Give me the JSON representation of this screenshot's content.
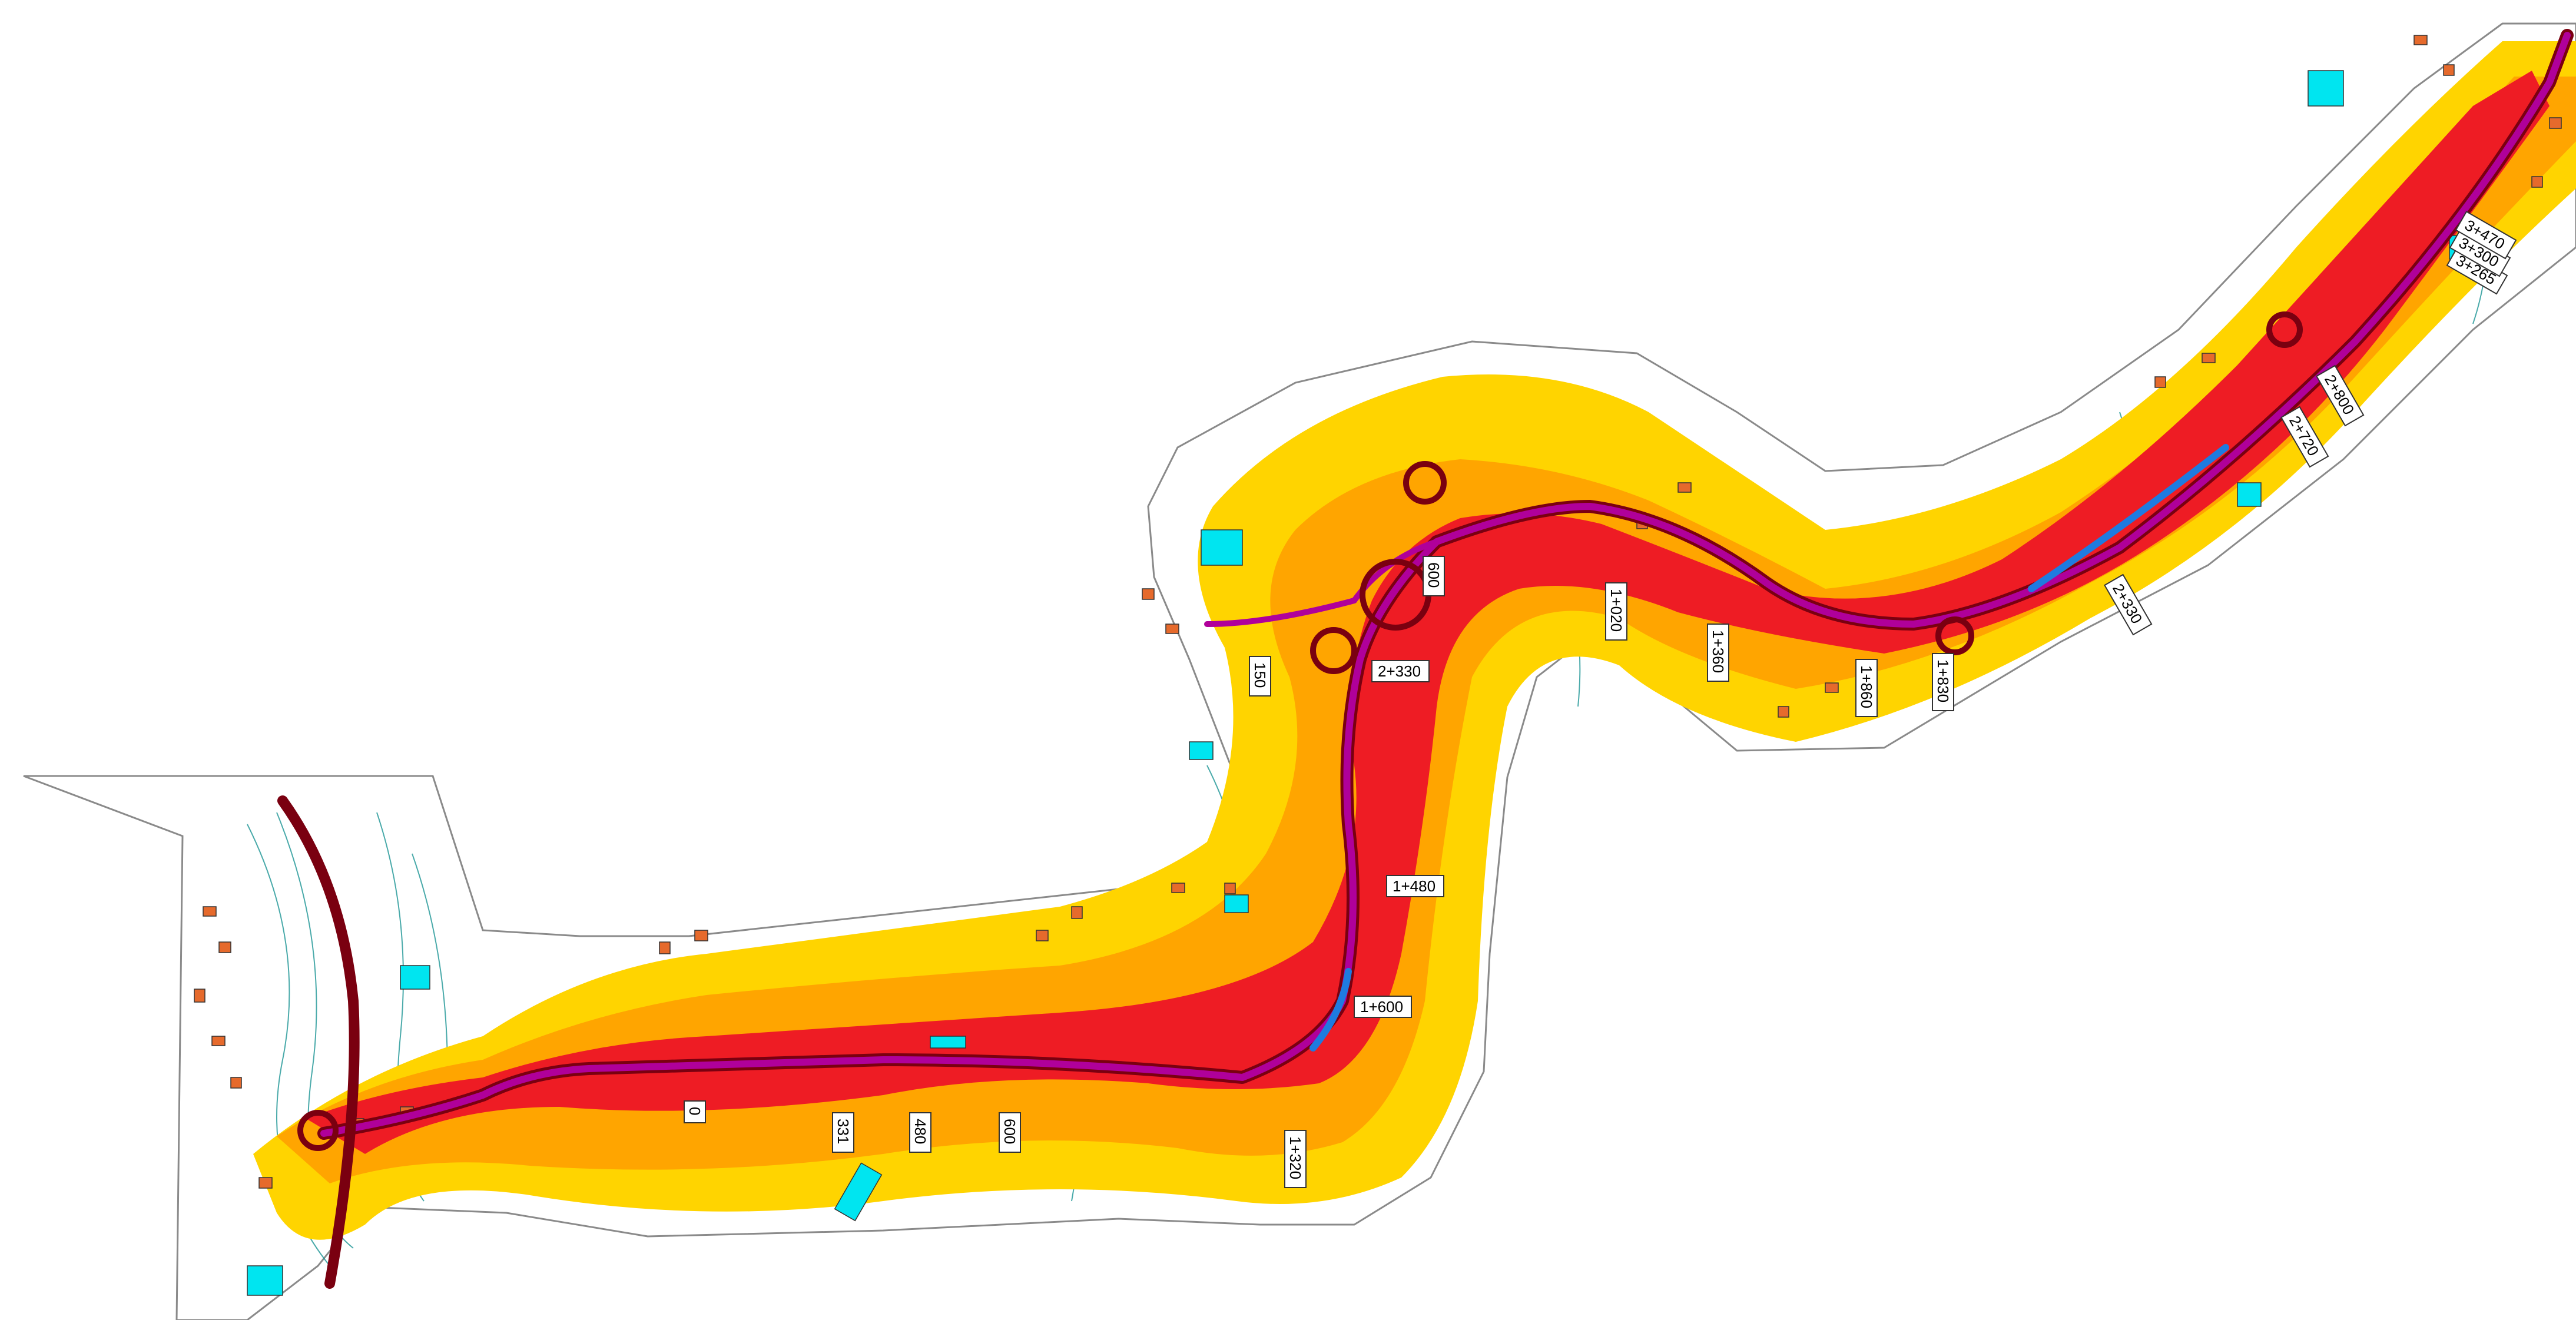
{
  "colors": {
    "zone_high": "#ee1c24",
    "zone_mid": "#ffa500",
    "zone_low": "#ffd400",
    "road_axis": "#b0009a",
    "road_edge": "#7a0010",
    "road_section_blue": "#1e7be0",
    "contour": "#0e8e8e",
    "building_residential": "#e66a2c",
    "building_other": "#00e5f0",
    "study_boundary": "#8a8a8a"
  },
  "chainage_labels": [
    {
      "id": "ch-0",
      "text": "0"
    },
    {
      "id": "ch-331",
      "text": "331"
    },
    {
      "id": "ch-480",
      "text": "480"
    },
    {
      "id": "ch-600",
      "text": "600"
    },
    {
      "id": "ch-1320",
      "text": "1+320"
    },
    {
      "id": "ch-1600",
      "text": "1+600"
    },
    {
      "id": "ch-1480",
      "text": "1+480"
    },
    {
      "id": "ch-2330",
      "text": "2+330"
    },
    {
      "id": "ch-150",
      "text": "150"
    },
    {
      "id": "ch-600b",
      "text": "600"
    },
    {
      "id": "ch-1020",
      "text": "1+020"
    },
    {
      "id": "ch-1360",
      "text": "1+360"
    },
    {
      "id": "ch-1860",
      "text": "1+860"
    },
    {
      "id": "ch-1830",
      "text": "1+830"
    },
    {
      "id": "ch-2330b",
      "text": "2+330"
    },
    {
      "id": "ch-2720",
      "text": "2+720"
    },
    {
      "id": "ch-2800",
      "text": "2+800"
    },
    {
      "id": "ch-3265",
      "text": "3+265"
    },
    {
      "id": "ch-3300",
      "text": "3+300"
    },
    {
      "id": "ch-3470",
      "text": "3+470"
    }
  ]
}
